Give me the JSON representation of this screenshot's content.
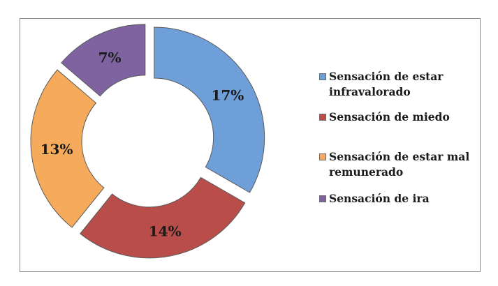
{
  "chart_data": {
    "type": "pie",
    "title": "",
    "categories": [
      "Sensación de estar infravalorado",
      "Sensación de miedo",
      "Sensación de estar mal remunerado",
      "Sensación de ira"
    ],
    "values": [
      17,
      14,
      13,
      7
    ],
    "labels": [
      "17%",
      "14%",
      "13%",
      "7%"
    ],
    "colors": [
      "#6f9fd8",
      "#b94d4a",
      "#f5ab5b",
      "#7e63a0"
    ],
    "style": "exploded doughnut",
    "legend_position": "right"
  },
  "legend": {
    "items": [
      {
        "lines": [
          "Sensación de estar",
          "infravalorado"
        ]
      },
      {
        "lines": [
          "Sensación de miedo"
        ]
      },
      {
        "lines": [
          "Sensación de estar mal",
          "remunerado"
        ]
      },
      {
        "lines": [
          "Sensación de ira"
        ]
      }
    ]
  }
}
